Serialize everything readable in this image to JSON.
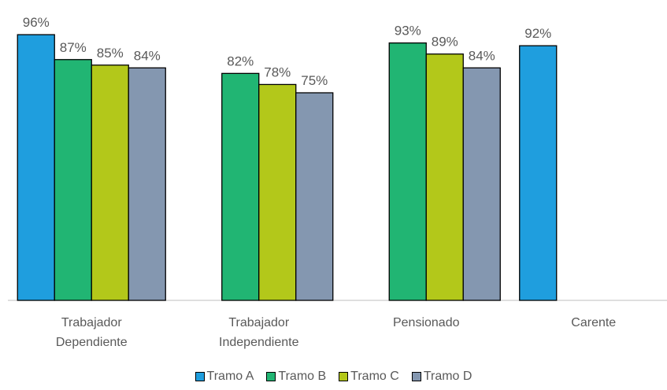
{
  "chart_data": {
    "type": "bar",
    "categories": [
      "Trabajador Dependiente",
      "Trabajador Independiente",
      "Pensionado",
      "Carente"
    ],
    "series": [
      {
        "name": "Tramo A",
        "color": "#1f9ede",
        "values": [
          96,
          null,
          null,
          92
        ],
        "value_labels": [
          "96%",
          null,
          null,
          "92%"
        ]
      },
      {
        "name": "Tramo B",
        "color": "#21b573",
        "values": [
          87,
          82,
          93,
          null
        ],
        "value_labels": [
          "87%",
          "82%",
          "93%",
          null
        ]
      },
      {
        "name": "Tramo C",
        "color": "#b3c81a",
        "values": [
          85,
          78,
          89,
          null
        ],
        "value_labels": [
          "85%",
          "78%",
          "89%",
          null
        ]
      },
      {
        "name": "Tramo D",
        "color": "#8497b0",
        "values": [
          84,
          75,
          84,
          null
        ],
        "value_labels": [
          "84%",
          "75%",
          "84%",
          null
        ]
      }
    ],
    "legend": "bottom"
  }
}
